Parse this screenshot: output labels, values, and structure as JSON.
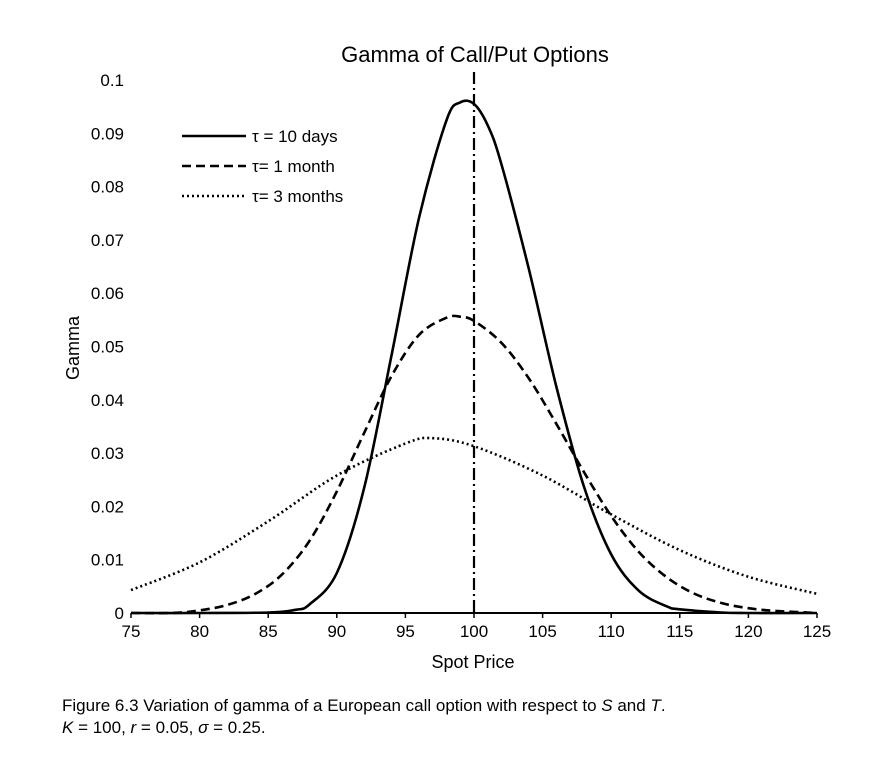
{
  "chart_data": {
    "type": "line",
    "title": "Gamma of Call/Put Options",
    "xlabel": "Spot Price",
    "ylabel": "Gamma",
    "xlim": [
      75,
      125
    ],
    "ylim": [
      0,
      0.1
    ],
    "xticks": [
      75,
      80,
      85,
      90,
      95,
      100,
      105,
      110,
      115,
      120,
      125
    ],
    "yticks": [
      0,
      0.01,
      0.02,
      0.03,
      0.04,
      0.05,
      0.06,
      0.07,
      0.08,
      0.09,
      0.1
    ],
    "grid": false,
    "legend_position": "top-left",
    "vertical_line": {
      "x": 100,
      "style": "dash-dot"
    },
    "series": [
      {
        "name": "τ = 10 days",
        "style": "solid",
        "x": [
          75,
          80,
          85,
          87,
          88,
          90,
          92,
          94,
          96,
          98,
          99,
          100,
          101,
          102,
          104,
          106,
          108,
          110,
          112,
          114,
          115,
          118,
          120,
          125
        ],
        "y": [
          0,
          0,
          0.0001,
          0.0006,
          0.0016,
          0.0075,
          0.0235,
          0.0485,
          0.0742,
          0.0925,
          0.0958,
          0.0955,
          0.0915,
          0.0842,
          0.0645,
          0.0425,
          0.0238,
          0.011,
          0.0042,
          0.0013,
          0.0007,
          0.0001,
          0,
          0
        ]
      },
      {
        "name": "τ= 1 month",
        "style": "dashed",
        "x": [
          75,
          78,
          80,
          82,
          84,
          86,
          88,
          90,
          92,
          94,
          96,
          98,
          99,
          100,
          102,
          104,
          106,
          108,
          110,
          112,
          114,
          116,
          118,
          120,
          122,
          125
        ],
        "y": [
          0,
          0,
          0.0005,
          0.0015,
          0.0035,
          0.0072,
          0.0135,
          0.0228,
          0.0338,
          0.0445,
          0.0522,
          0.0554,
          0.0556,
          0.0548,
          0.0507,
          0.044,
          0.0355,
          0.0265,
          0.0182,
          0.0115,
          0.0068,
          0.0037,
          0.0019,
          0.0009,
          0.0004,
          0
        ]
      },
      {
        "name": "τ= 3 months",
        "style": "dotted",
        "x": [
          75,
          80,
          85,
          90,
          95,
          97,
          100,
          105,
          110,
          115,
          120,
          125
        ],
        "y": [
          0.0043,
          0.0095,
          0.0172,
          0.0258,
          0.0318,
          0.0328,
          0.0313,
          0.0258,
          0.0185,
          0.0118,
          0.0068,
          0.0036
        ]
      }
    ]
  },
  "caption": {
    "line1_prefix": "Figure 6.3 Variation of gamma of a European call option with respect to ",
    "line1_S": "S",
    "line1_and": " and ",
    "line1_T": "T",
    "line1_end": ".",
    "line2_K": "K",
    "line2_a": " = 100, ",
    "line2_r": "r",
    "line2_b": " = 0.05, ",
    "line2_sigma": "σ",
    "line2_c": " = 0.25."
  }
}
